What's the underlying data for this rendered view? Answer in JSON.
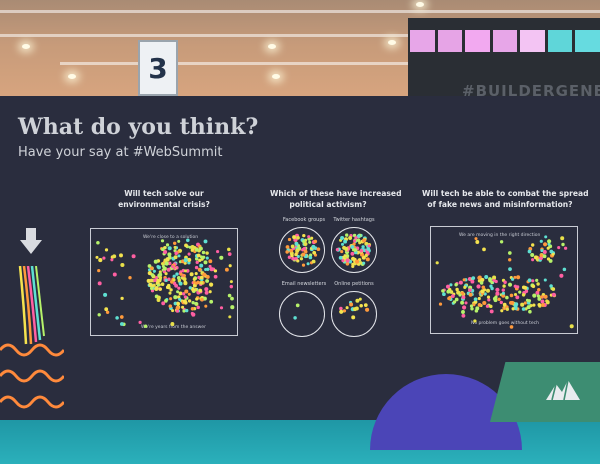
{
  "scene": {
    "hall_sign": "3",
    "booth_sign": "#BUILDERGENE",
    "booth_lights": [
      "#e7a6e8",
      "#e6a4e6",
      "#f2a9f0",
      "#e7a6e8",
      "#f3c4f3",
      "#5fd6d9",
      "#66dbe0"
    ]
  },
  "board": {
    "title": "What do you think?",
    "subtitle": "Have your say at #WebSummit",
    "colors": {
      "background": "#2a2d3e",
      "dot_colors": [
        "#f4e34f",
        "#ff5fa2",
        "#5ee0d2",
        "#ff9a3c",
        "#b6f26a",
        "#e8e04a"
      ]
    },
    "question_1": {
      "line1": "Will tech solve our",
      "line2": "environmental crisis?",
      "top_label": "We're close to a solution",
      "bottom_label": "We're years from the answer"
    },
    "question_2": {
      "line1": "Which of these have increased",
      "line2": "political activism?",
      "options": [
        "Facebook groups",
        "Twitter hashtags",
        "Email newsletters",
        "Online petitions"
      ]
    },
    "question_3": {
      "line1": "Will tech be able to combat the spread",
      "line2": "of fake news and misinformation?",
      "top_label": "We are moving in the right direction",
      "bottom_label": "No problem goes without tech"
    }
  }
}
